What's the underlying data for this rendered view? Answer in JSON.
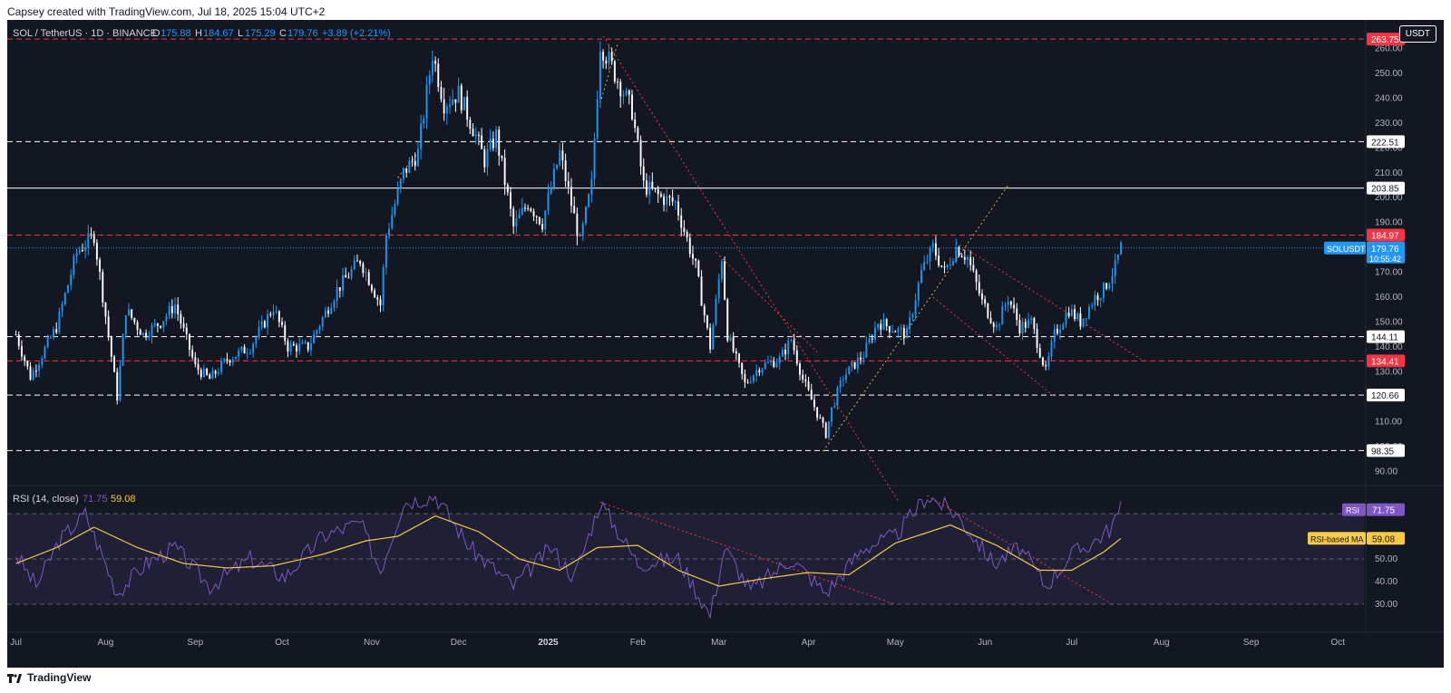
{
  "caption": "Capsey created with TradingView.com, Jul 18, 2025 15:04 UTC+2",
  "footer_brand": "TradingView",
  "currency_button": "USDT",
  "colors": {
    "background": "#131722",
    "up": "#2196f3",
    "down": "#ffffff",
    "resistance": "#f23645",
    "support": "#ffffff",
    "rsi": "#7e57c2",
    "rsi_ma": "#f7c948",
    "trend": "#f23645",
    "fib": "#c9b458"
  },
  "chart_data": {
    "type": "candlestick",
    "symbol": "SOL / TetherUS · 1D · BINANCE",
    "ohlc": {
      "o_label": "O",
      "o": "175.88",
      "h_label": "H",
      "h": "184.67",
      "l_label": "L",
      "l": "175.29",
      "c_label": "C",
      "c": "179.76",
      "change": "+3.89 (+2.21%)"
    },
    "ylim": [
      85,
      270
    ],
    "y_ticks": [
      90,
      100,
      110,
      120,
      130,
      140,
      150,
      160,
      170,
      180,
      190,
      200,
      210,
      220,
      230,
      240,
      250,
      260
    ],
    "x_ticks": [
      "Jul",
      "Aug",
      "Sep",
      "Oct",
      "Nov",
      "Dec",
      "2025",
      "Feb",
      "Mar",
      "Apr",
      "May",
      "Jun",
      "Jul",
      "Aug",
      "Sep",
      "Oct"
    ],
    "x_tick_months": [
      "2024-07-01",
      "2024-08-01",
      "2024-09-01",
      "2024-10-01",
      "2024-11-01",
      "2024-12-01",
      "2025-01-01",
      "2025-02-01",
      "2025-03-01",
      "2025-04-01",
      "2025-05-01",
      "2025-06-01",
      "2025-07-01",
      "2025-08-01",
      "2025-09-01",
      "2025-10-01"
    ],
    "date_range": [
      "2024-06-28",
      "2025-10-10"
    ],
    "last_date": "2025-07-18",
    "price_anchors": [
      [
        "2024-07-01",
        145
      ],
      [
        "2024-07-06",
        128
      ],
      [
        "2024-07-15",
        148
      ],
      [
        "2024-07-22",
        178
      ],
      [
        "2024-07-28",
        185
      ],
      [
        "2024-08-05",
        120
      ],
      [
        "2024-08-08",
        155
      ],
      [
        "2024-08-14",
        145
      ],
      [
        "2024-08-20",
        150
      ],
      [
        "2024-08-25",
        157
      ],
      [
        "2024-09-01",
        132
      ],
      [
        "2024-09-06",
        127
      ],
      [
        "2024-09-12",
        135
      ],
      [
        "2024-09-20",
        140
      ],
      [
        "2024-09-28",
        156
      ],
      [
        "2024-10-03",
        140
      ],
      [
        "2024-10-10",
        140
      ],
      [
        "2024-10-20",
        163
      ],
      [
        "2024-10-28",
        175
      ],
      [
        "2024-11-04",
        157
      ],
      [
        "2024-11-06",
        185
      ],
      [
        "2024-11-12",
        210
      ],
      [
        "2024-11-17",
        218
      ],
      [
        "2024-11-22",
        258
      ],
      [
        "2024-11-26",
        238
      ],
      [
        "2024-12-01",
        242
      ],
      [
        "2024-12-06",
        228
      ],
      [
        "2024-12-10",
        215
      ],
      [
        "2024-12-14",
        225
      ],
      [
        "2024-12-20",
        188
      ],
      [
        "2024-12-25",
        198
      ],
      [
        "2024-12-30",
        190
      ],
      [
        "2025-01-05",
        218
      ],
      [
        "2025-01-12",
        182
      ],
      [
        "2025-01-16",
        205
      ],
      [
        "2025-01-19",
        262
      ],
      [
        "2025-01-22",
        255
      ],
      [
        "2025-01-26",
        245
      ],
      [
        "2025-01-30",
        235
      ],
      [
        "2025-02-03",
        205
      ],
      [
        "2025-02-09",
        200
      ],
      [
        "2025-02-14",
        198
      ],
      [
        "2025-02-21",
        172
      ],
      [
        "2025-02-26",
        140
      ],
      [
        "2025-03-02",
        176
      ],
      [
        "2025-03-04",
        145
      ],
      [
        "2025-03-10",
        125
      ],
      [
        "2025-03-15",
        132
      ],
      [
        "2025-03-22",
        135
      ],
      [
        "2025-03-26",
        143
      ],
      [
        "2025-03-30",
        127
      ],
      [
        "2025-04-07",
        105
      ],
      [
        "2025-04-09",
        115
      ],
      [
        "2025-04-13",
        128
      ],
      [
        "2025-04-20",
        137
      ],
      [
        "2025-04-25",
        150
      ],
      [
        "2025-05-01",
        147
      ],
      [
        "2025-05-05",
        145
      ],
      [
        "2025-05-10",
        170
      ],
      [
        "2025-05-14",
        180
      ],
      [
        "2025-05-18",
        170
      ],
      [
        "2025-05-22",
        180
      ],
      [
        "2025-05-26",
        176
      ],
      [
        "2025-05-31",
        158
      ],
      [
        "2025-06-05",
        148
      ],
      [
        "2025-06-09",
        160
      ],
      [
        "2025-06-13",
        148
      ],
      [
        "2025-06-17",
        150
      ],
      [
        "2025-06-22",
        130
      ],
      [
        "2025-06-25",
        145
      ],
      [
        "2025-06-30",
        155
      ],
      [
        "2025-07-04",
        150
      ],
      [
        "2025-07-09",
        160
      ],
      [
        "2025-07-12",
        163
      ],
      [
        "2025-07-16",
        172
      ],
      [
        "2025-07-18",
        180
      ]
    ],
    "levels": [
      {
        "value": 263.75,
        "label": "263.75",
        "style": "dashed",
        "color": "#f23645"
      },
      {
        "value": 222.51,
        "label": "222.51",
        "style": "dashed",
        "color": "#ffffff"
      },
      {
        "value": 203.85,
        "label": "203.85",
        "style": "solid",
        "color": "#ffffff"
      },
      {
        "value": 184.97,
        "label": "184.97",
        "style": "dashed",
        "color": "#f23645"
      },
      {
        "value": 144.11,
        "label": "144.11",
        "style": "dashed",
        "color": "#ffffff"
      },
      {
        "value": 134.41,
        "label": "134.41",
        "style": "dashed",
        "color": "#f23645"
      },
      {
        "value": 120.66,
        "label": "120.66",
        "style": "dashed",
        "color": "#ffffff"
      },
      {
        "value": 98.35,
        "label": "98.35",
        "style": "dashed",
        "color": "#ffffff"
      }
    ],
    "last_price": {
      "value": 179.76,
      "symbol_label": "SOLUSDT",
      "price_label": "179.76",
      "countdown": "10:55:42"
    },
    "trendlines": [
      {
        "from": [
          "2025-01-20",
          265
        ],
        "to": [
          "2025-05-02",
          78
        ],
        "color": "#f23645"
      },
      {
        "from": [
          "2025-02-28",
          178
        ],
        "to": [
          "2025-04-04",
          138
        ],
        "color": "#f23645"
      },
      {
        "from": [
          "2025-05-22",
          182
        ],
        "to": [
          "2025-07-25",
          135
        ],
        "color": "#f23645"
      },
      {
        "from": [
          "2025-05-14",
          160
        ],
        "to": [
          "2025-06-25",
          120
        ],
        "color": "#f23645"
      },
      {
        "from": [
          "2025-04-06",
          98
        ],
        "to": [
          "2025-06-09",
          205
        ],
        "color": "#c9b458"
      },
      {
        "from": [
          "2024-11-10",
          208
        ],
        "to": [
          "2024-11-17",
          218
        ],
        "color": "#c9b458"
      },
      {
        "from": [
          "2025-01-19",
          238
        ],
        "to": [
          "2025-01-25",
          262
        ],
        "color": "#c9b458"
      }
    ],
    "rsi": {
      "title": "RSI (14, close)",
      "value": "71.75",
      "ma_value": "59.08",
      "label": "RSI",
      "ma_label": "RSI-based MA",
      "ylim": [
        20,
        80
      ],
      "y_ticks": [
        30,
        40,
        50,
        60
      ],
      "bands": [
        70,
        50,
        30
      ],
      "anchors": [
        [
          "2024-07-01",
          52
        ],
        [
          "2024-07-08",
          38
        ],
        [
          "2024-07-16",
          58
        ],
        [
          "2024-07-25",
          70
        ],
        [
          "2024-08-05",
          35
        ],
        [
          "2024-08-15",
          48
        ],
        [
          "2024-08-25",
          55
        ],
        [
          "2024-09-06",
          38
        ],
        [
          "2024-09-20",
          50
        ],
        [
          "2024-10-02",
          42
        ],
        [
          "2024-10-15",
          60
        ],
        [
          "2024-10-28",
          66
        ],
        [
          "2024-11-04",
          45
        ],
        [
          "2024-11-12",
          75
        ],
        [
          "2024-11-23",
          78
        ],
        [
          "2024-12-05",
          55
        ],
        [
          "2024-12-20",
          38
        ],
        [
          "2025-01-02",
          55
        ],
        [
          "2025-01-10",
          42
        ],
        [
          "2025-01-19",
          75
        ],
        [
          "2025-02-01",
          48
        ],
        [
          "2025-02-15",
          50
        ],
        [
          "2025-02-26",
          25
        ],
        [
          "2025-03-03",
          55
        ],
        [
          "2025-03-12",
          36
        ],
        [
          "2025-03-26",
          50
        ],
        [
          "2025-04-07",
          35
        ],
        [
          "2025-04-20",
          55
        ],
        [
          "2025-05-01",
          60
        ],
        [
          "2025-05-12",
          78
        ],
        [
          "2025-05-22",
          70
        ],
        [
          "2025-06-04",
          48
        ],
        [
          "2025-06-13",
          55
        ],
        [
          "2025-06-22",
          38
        ],
        [
          "2025-07-01",
          52
        ],
        [
          "2025-07-09",
          58
        ],
        [
          "2025-07-14",
          63
        ],
        [
          "2025-07-18",
          71.75
        ]
      ],
      "ma_anchors": [
        [
          "2024-07-01",
          48
        ],
        [
          "2024-07-15",
          55
        ],
        [
          "2024-07-28",
          64
        ],
        [
          "2024-08-12",
          55
        ],
        [
          "2024-08-28",
          48
        ],
        [
          "2024-09-12",
          46
        ],
        [
          "2024-09-28",
          47
        ],
        [
          "2024-10-15",
          52
        ],
        [
          "2024-10-30",
          58
        ],
        [
          "2024-11-10",
          60
        ],
        [
          "2024-11-23",
          69
        ],
        [
          "2024-12-08",
          62
        ],
        [
          "2024-12-22",
          50
        ],
        [
          "2025-01-05",
          45
        ],
        [
          "2025-01-18",
          55
        ],
        [
          "2025-02-01",
          56
        ],
        [
          "2025-02-15",
          45
        ],
        [
          "2025-03-01",
          38
        ],
        [
          "2025-03-15",
          41
        ],
        [
          "2025-04-01",
          44
        ],
        [
          "2025-04-15",
          43
        ],
        [
          "2025-05-01",
          57
        ],
        [
          "2025-05-20",
          65
        ],
        [
          "2025-06-05",
          56
        ],
        [
          "2025-06-20",
          45
        ],
        [
          "2025-07-01",
          45
        ],
        [
          "2025-07-12",
          53
        ],
        [
          "2025-07-18",
          59.08
        ]
      ],
      "trendlines": [
        {
          "from": [
            "2025-01-19",
            75
          ],
          "to": [
            "2025-05-01",
            30
          ],
          "color": "#f23645"
        },
        {
          "from": [
            "2025-05-12",
            78
          ],
          "to": [
            "2025-07-15",
            30
          ],
          "color": "#f23645"
        }
      ]
    }
  }
}
